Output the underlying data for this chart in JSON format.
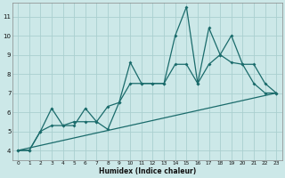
{
  "xlabel": "Humidex (Indice chaleur)",
  "bg_color": "#cce8e8",
  "grid_color": "#aacfcf",
  "line_color": "#1a6b6b",
  "xlim": [
    -0.5,
    23.5
  ],
  "ylim": [
    3.5,
    11.7
  ],
  "xticks": [
    0,
    1,
    2,
    3,
    4,
    5,
    6,
    7,
    8,
    9,
    10,
    11,
    12,
    13,
    14,
    15,
    16,
    17,
    18,
    19,
    20,
    21,
    22,
    23
  ],
  "yticks": [
    4,
    5,
    6,
    7,
    8,
    9,
    10,
    11
  ],
  "line1_x": [
    0,
    1,
    2,
    3,
    4,
    5,
    6,
    7,
    8,
    9,
    10,
    11,
    12,
    13,
    14,
    15,
    16,
    17,
    18,
    19,
    20,
    21,
    22,
    23
  ],
  "line1_y": [
    4,
    4,
    5,
    6.2,
    5.3,
    5.3,
    6.2,
    5.5,
    5.1,
    6.5,
    8.6,
    7.5,
    7.5,
    7.5,
    10.0,
    11.5,
    7.5,
    10.4,
    9.0,
    10.0,
    8.5,
    7.5,
    7.0,
    7.0
  ],
  "line2_x": [
    0,
    1,
    2,
    3,
    4,
    5,
    6,
    7,
    8,
    9,
    10,
    11,
    12,
    13,
    14,
    15,
    16,
    17,
    18,
    19,
    20,
    21,
    22,
    23
  ],
  "line2_y": [
    4,
    4,
    5,
    5.3,
    5.3,
    5.5,
    5.5,
    5.5,
    6.3,
    6.5,
    7.5,
    7.5,
    7.5,
    7.5,
    8.5,
    8.5,
    7.5,
    8.5,
    9.0,
    8.6,
    8.5,
    8.5,
    7.5,
    7.0
  ],
  "line3_x": [
    0,
    23
  ],
  "line3_y": [
    4,
    7
  ]
}
